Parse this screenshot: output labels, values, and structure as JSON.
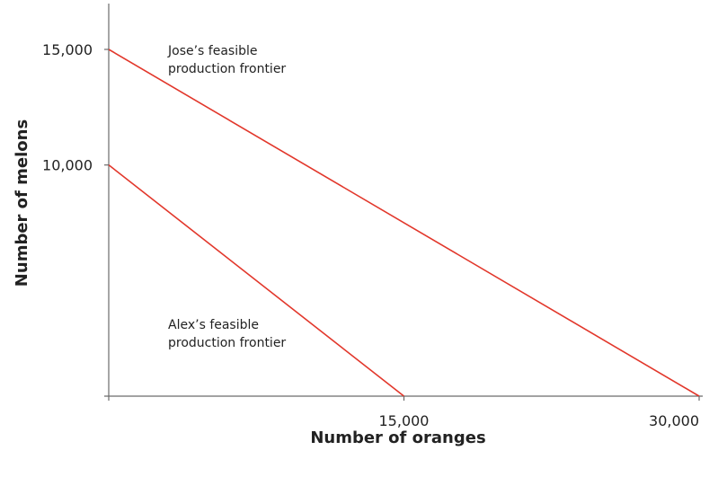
{
  "chart_data": {
    "type": "line",
    "title": "",
    "xlabel": "Number of oranges",
    "ylabel": "Number of melons",
    "xlim": [
      0,
      30000
    ],
    "ylim": [
      0,
      15000
    ],
    "x_ticks": [
      {
        "value": 15000,
        "label": "15,000"
      },
      {
        "value": 30000,
        "label": "30,000"
      }
    ],
    "y_ticks": [
      {
        "value": 10000,
        "label": "10,000"
      },
      {
        "value": 15000,
        "label": "15,000"
      }
    ],
    "grid": false,
    "series": [
      {
        "points": [
          [
            0,
            15000
          ],
          [
            30000,
            0
          ]
        ],
        "color": "#e2372b"
      },
      {
        "points": [
          [
            0,
            10000
          ],
          [
            15000,
            0
          ]
        ],
        "color": "#e2372b"
      }
    ],
    "annotations": [
      {
        "lines": [
          "Jose’s feasible",
          "production frontier"
        ]
      },
      {
        "lines": [
          "Alex’s feasible",
          "production frontier"
        ]
      }
    ]
  }
}
